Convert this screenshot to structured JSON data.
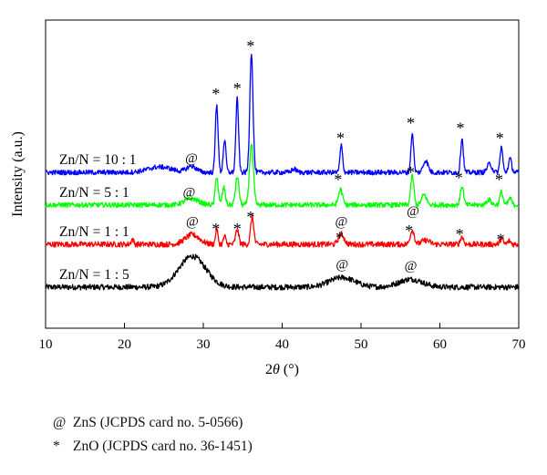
{
  "chart_data": {
    "type": "line",
    "xlabel_main": "2",
    "xlabel_theta": "θ",
    "xlabel_unit": " (°)",
    "ylabel": "Intensity (a.u.)",
    "xlim": [
      10,
      70
    ],
    "xticks": [
      10,
      20,
      30,
      40,
      50,
      60,
      70
    ],
    "grid": false,
    "legend": "none",
    "series": [
      {
        "name": "Zn/N = 1 : 5",
        "color": "#000000",
        "baseline": 0.0,
        "noise": 0.9,
        "peaks": [
          [
            28.6,
            9.0,
            1.7
          ],
          [
            47.6,
            2.8,
            1.6
          ],
          [
            56.3,
            2.3,
            1.5
          ]
        ]
      },
      {
        "name": "Zn/N = 1 : 1",
        "color": "#ff0000",
        "baseline": 12.5,
        "noise": 0.9,
        "peaks": [
          [
            21.0,
            1.6,
            0.15
          ],
          [
            28.6,
            2.8,
            0.9
          ],
          [
            31.7,
            4.5,
            0.15
          ],
          [
            32.7,
            2.4,
            0.15
          ],
          [
            34.3,
            4.3,
            0.2
          ],
          [
            36.2,
            8.0,
            0.2
          ],
          [
            47.5,
            3.0,
            0.35
          ],
          [
            56.5,
            4.2,
            0.25
          ],
          [
            58.2,
            1.2,
            0.5
          ],
          [
            62.8,
            2.2,
            0.2
          ],
          [
            67.8,
            1.6,
            0.2
          ],
          [
            68.8,
            1.0,
            0.2
          ]
        ]
      },
      {
        "name": "Zn/N = 5 : 1",
        "color": "#00ff00",
        "baseline": 24.0,
        "noise": 0.8,
        "peaks": [
          [
            28.5,
            1.8,
            0.9
          ],
          [
            31.7,
            8.5,
            0.18
          ],
          [
            32.6,
            5.0,
            0.2
          ],
          [
            34.3,
            8.2,
            0.22
          ],
          [
            36.1,
            17.5,
            0.25
          ],
          [
            47.4,
            4.5,
            0.25
          ],
          [
            56.5,
            8.5,
            0.2
          ],
          [
            58.0,
            3.0,
            0.3
          ],
          [
            62.8,
            5.5,
            0.2
          ],
          [
            66.2,
            1.5,
            0.3
          ],
          [
            67.8,
            3.8,
            0.2
          ],
          [
            68.9,
            2.0,
            0.2
          ]
        ]
      },
      {
        "name": "Zn/N = 10 : 1",
        "color": "#0000ff",
        "baseline": 33.5,
        "noise": 0.8,
        "peaks": [
          [
            24.5,
            1.6,
            1.5
          ],
          [
            28.5,
            1.8,
            0.6
          ],
          [
            31.7,
            20.0,
            0.17
          ],
          [
            32.7,
            9.5,
            0.17
          ],
          [
            34.3,
            21.5,
            0.17
          ],
          [
            36.1,
            35.0,
            0.2
          ],
          [
            41.5,
            1.0,
            0.3
          ],
          [
            47.5,
            7.8,
            0.17
          ],
          [
            56.5,
            11.5,
            0.17
          ],
          [
            58.2,
            3.5,
            0.3
          ],
          [
            62.8,
            10.0,
            0.17
          ],
          [
            66.3,
            2.5,
            0.3
          ],
          [
            67.8,
            7.5,
            0.17
          ],
          [
            68.9,
            4.0,
            0.2
          ]
        ]
      }
    ],
    "annotations": [
      {
        "text": "*",
        "x": 31.6,
        "y": 57.0
      },
      {
        "text": "*",
        "x": 34.3,
        "y": 58.5
      },
      {
        "text": "*",
        "x": 36.0,
        "y": 71.0
      },
      {
        "text": "@",
        "x": 28.5,
        "y": 36.5
      },
      {
        "text": "*",
        "x": 47.4,
        "y": 44.0
      },
      {
        "text": "*",
        "x": 56.3,
        "y": 48.5
      },
      {
        "text": "*",
        "x": 62.6,
        "y": 47.0
      },
      {
        "text": "*",
        "x": 67.6,
        "y": 44.0
      },
      {
        "text": "@",
        "x": 28.2,
        "y": 26.5
      },
      {
        "text": "*",
        "x": 47.1,
        "y": 32.0
      },
      {
        "text": "*",
        "x": 56.3,
        "y": 34.0
      },
      {
        "text": "*",
        "x": 62.4,
        "y": 32.5
      },
      {
        "text": "*",
        "x": 67.5,
        "y": 32.0
      },
      {
        "text": "@",
        "x": 28.6,
        "y": 18.0
      },
      {
        "text": "*",
        "x": 31.6,
        "y": 17.5
      },
      {
        "text": "*",
        "x": 34.3,
        "y": 17.5
      },
      {
        "text": "*",
        "x": 36.0,
        "y": 21.0
      },
      {
        "text": "@",
        "x": 47.5,
        "y": 18.0
      },
      {
        "text": "*",
        "x": 47.3,
        "y": 15.0
      },
      {
        "text": "@",
        "x": 56.6,
        "y": 21.0
      },
      {
        "text": "*",
        "x": 56.1,
        "y": 17.0
      },
      {
        "text": "*",
        "x": 62.5,
        "y": 16.0
      },
      {
        "text": "*",
        "x": 67.7,
        "y": 14.5
      },
      {
        "text": "@",
        "x": 47.6,
        "y": 5.5
      },
      {
        "text": "@",
        "x": 56.3,
        "y": 5.0
      }
    ]
  },
  "notes": [
    {
      "symbol": "@",
      "text": "ZnS (JCPDS card no. 5-0566)"
    },
    {
      "symbol": "*",
      "text": "ZnO (JCPDS card no. 36-1451)"
    }
  ]
}
